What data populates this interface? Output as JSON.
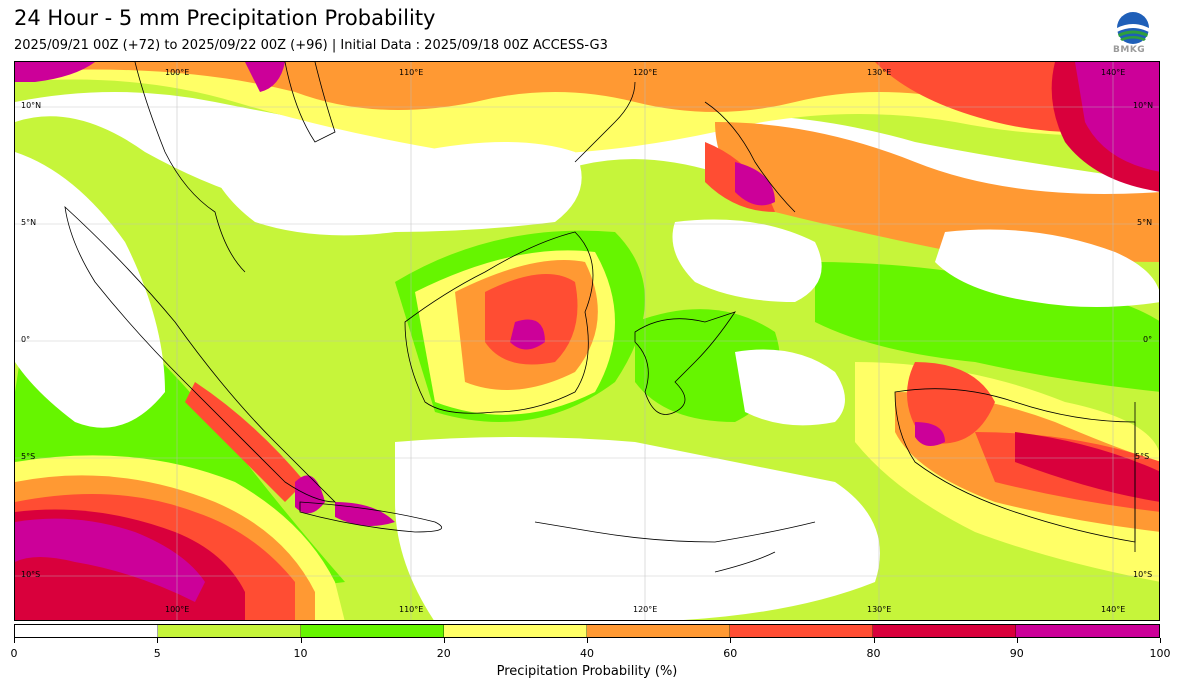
{
  "title": "24 Hour - 5 mm Precipitation Probability",
  "subtitle": "2025/09/21 00Z (+72) to 2025/09/22 00Z (+96) | Initial Data : 2025/09/18 00Z ACCESS-G3",
  "logo": {
    "text": "BMKG",
    "icon": "bmkg-logo-icon"
  },
  "map": {
    "lon_labels": [
      "100°E",
      "110°E",
      "120°E",
      "130°E",
      "140°E"
    ],
    "lat_labels": [
      "10°N",
      "5°N",
      "0°",
      "5°S",
      "10°S"
    ],
    "lon_range": [
      94,
      143
    ],
    "lat_range": [
      -11.8,
      12
    ],
    "gridlines": true
  },
  "colorbar": {
    "label": "Precipitation Probability (%)",
    "ticks": [
      "0",
      "5",
      "10",
      "20",
      "40",
      "60",
      "80",
      "90",
      "100"
    ],
    "colors": [
      "#ffffff",
      "#c6f53a",
      "#66f500",
      "#ffff66",
      "#ff9933",
      "#ff4d33",
      "#d9003c",
      "#cc0099"
    ]
  }
}
